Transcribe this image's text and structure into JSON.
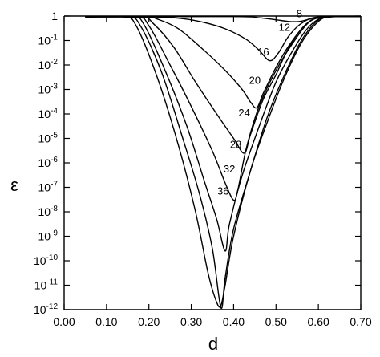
{
  "chart_data": {
    "type": "line",
    "xlabel": "d",
    "ylabel": "ε",
    "y_scale": "log",
    "xlim": [
      0.0,
      0.7
    ],
    "ylim": [
      1e-12,
      1
    ],
    "x_ticks": [
      "0.00",
      "0.10",
      "0.20",
      "0.30",
      "0.40",
      "0.50",
      "0.60",
      "0.70"
    ],
    "y_ticks": [
      {
        "value": 1,
        "base": "1",
        "exp": ""
      },
      {
        "value": 0.1,
        "base": "10",
        "exp": "-1"
      },
      {
        "value": 0.01,
        "base": "10",
        "exp": "-2"
      },
      {
        "value": 0.001,
        "base": "10",
        "exp": "-3"
      },
      {
        "value": 0.0001,
        "base": "10",
        "exp": "-4"
      },
      {
        "value": 1e-05,
        "base": "10",
        "exp": "-5"
      },
      {
        "value": 1e-06,
        "base": "10",
        "exp": "-6"
      },
      {
        "value": 1e-07,
        "base": "10",
        "exp": "-7"
      },
      {
        "value": 1e-08,
        "base": "10",
        "exp": "-8"
      },
      {
        "value": 1e-09,
        "base": "10",
        "exp": "-9"
      },
      {
        "value": 1e-10,
        "base": "10",
        "exp": "-10"
      },
      {
        "value": 1e-11,
        "base": "10",
        "exp": "-11"
      },
      {
        "value": 1e-12,
        "base": "10",
        "exp": "-12"
      }
    ],
    "grid": false,
    "legend": "none",
    "series": [
      {
        "name": "8",
        "label_at": {
          "x": 0.555,
          "y": 0.9
        },
        "points": [
          [
            0.05,
            0.92
          ],
          [
            0.4,
            0.95
          ],
          [
            0.46,
            0.85
          ],
          [
            0.5,
            0.7
          ],
          [
            0.53,
            0.6
          ],
          [
            0.555,
            0.6
          ],
          [
            0.58,
            0.75
          ],
          [
            0.61,
            0.93
          ],
          [
            0.7,
            0.96
          ]
        ]
      },
      {
        "name": "12",
        "label_at": {
          "x": 0.52,
          "y": 0.25
        },
        "points": [
          [
            0.05,
            0.92
          ],
          [
            0.2,
            0.92
          ],
          [
            0.26,
            0.85
          ],
          [
            0.32,
            0.6
          ],
          [
            0.38,
            0.3
          ],
          [
            0.43,
            0.11
          ],
          [
            0.46,
            0.04
          ],
          [
            0.485,
            0.015
          ],
          [
            0.505,
            0.03
          ],
          [
            0.53,
            0.15
          ],
          [
            0.56,
            0.5
          ],
          [
            0.6,
            0.92
          ],
          [
            0.7,
            0.95
          ]
        ]
      },
      {
        "name": "16",
        "label_at": {
          "x": 0.47,
          "y": 0.025
        },
        "points": [
          [
            0.05,
            0.92
          ],
          [
            0.19,
            0.92
          ],
          [
            0.22,
            0.75
          ],
          [
            0.27,
            0.3
          ],
          [
            0.33,
            0.04
          ],
          [
            0.38,
            0.006
          ],
          [
            0.42,
            0.001
          ],
          [
            0.44,
            0.0003
          ],
          [
            0.455,
            0.00018
          ],
          [
            0.47,
            0.0007
          ],
          [
            0.5,
            0.008
          ],
          [
            0.53,
            0.06
          ],
          [
            0.57,
            0.45
          ],
          [
            0.61,
            0.9
          ],
          [
            0.7,
            0.95
          ]
        ]
      },
      {
        "name": "20",
        "label_at": {
          "x": 0.45,
          "y": 0.0017
        },
        "points": [
          [
            0.05,
            0.92
          ],
          [
            0.18,
            0.92
          ],
          [
            0.21,
            0.5
          ],
          [
            0.26,
            0.05
          ],
          [
            0.31,
            0.002
          ],
          [
            0.36,
            0.0001
          ],
          [
            0.4,
            1e-05
          ],
          [
            0.425,
            2.5e-06
          ],
          [
            0.44,
            1.5e-05
          ],
          [
            0.47,
            0.0004
          ],
          [
            0.5,
            0.004
          ],
          [
            0.53,
            0.05
          ],
          [
            0.57,
            0.45
          ],
          [
            0.61,
            0.9
          ],
          [
            0.7,
            0.95
          ]
        ]
      },
      {
        "name": "24",
        "label_at": {
          "x": 0.425,
          "y": 8e-05
        },
        "points": [
          [
            0.05,
            0.92
          ],
          [
            0.17,
            0.92
          ],
          [
            0.2,
            0.4
          ],
          [
            0.25,
            0.01
          ],
          [
            0.3,
            0.0002
          ],
          [
            0.35,
            3e-06
          ],
          [
            0.38,
            1.5e-07
          ],
          [
            0.4,
            3e-08
          ],
          [
            0.41,
            8e-08
          ],
          [
            0.43,
            4e-06
          ],
          [
            0.46,
            0.0002
          ],
          [
            0.5,
            0.006
          ],
          [
            0.54,
            0.08
          ],
          [
            0.58,
            0.6
          ],
          [
            0.62,
            0.92
          ],
          [
            0.7,
            0.95
          ]
        ]
      },
      {
        "name": "28",
        "label_at": {
          "x": 0.405,
          "y": 4e-06
        },
        "points": [
          [
            0.05,
            0.92
          ],
          [
            0.16,
            0.92
          ],
          [
            0.19,
            0.4
          ],
          [
            0.24,
            0.005
          ],
          [
            0.29,
            3e-05
          ],
          [
            0.33,
            2e-07
          ],
          [
            0.36,
            5e-09
          ],
          [
            0.38,
            2.5e-10
          ],
          [
            0.39,
            3e-09
          ],
          [
            0.42,
            3e-07
          ],
          [
            0.46,
            3e-05
          ],
          [
            0.5,
            0.002
          ],
          [
            0.54,
            0.04
          ],
          [
            0.58,
            0.4
          ],
          [
            0.62,
            0.9
          ],
          [
            0.7,
            0.95
          ]
        ]
      },
      {
        "name": "32",
        "label_at": {
          "x": 0.39,
          "y": 4e-07
        },
        "points": [
          [
            0.05,
            0.92
          ],
          [
            0.15,
            0.92
          ],
          [
            0.18,
            0.4
          ],
          [
            0.23,
            0.005
          ],
          [
            0.28,
            1e-05
          ],
          [
            0.32,
            5e-08
          ],
          [
            0.35,
            3e-10
          ],
          [
            0.37,
            1.2e-12
          ],
          [
            0.38,
            2e-11
          ],
          [
            0.4,
            2e-09
          ],
          [
            0.44,
            5e-07
          ],
          [
            0.48,
            8e-05
          ],
          [
            0.52,
            0.004
          ],
          [
            0.56,
            0.1
          ],
          [
            0.6,
            0.7
          ],
          [
            0.63,
            0.93
          ],
          [
            0.7,
            0.95
          ]
        ]
      },
      {
        "name": "36",
        "label_at": {
          "x": 0.375,
          "y": 5e-08
        },
        "points": [
          [
            0.05,
            0.92
          ],
          [
            0.14,
            0.92
          ],
          [
            0.17,
            0.4
          ],
          [
            0.22,
            0.003
          ],
          [
            0.27,
            5e-06
          ],
          [
            0.31,
            1e-08
          ],
          [
            0.34,
            3e-11
          ],
          [
            0.36,
            2e-12
          ],
          [
            0.37,
            1.5e-12
          ],
          [
            0.38,
            1e-11
          ],
          [
            0.4,
            1e-09
          ],
          [
            0.44,
            5e-07
          ],
          [
            0.48,
            5e-05
          ],
          [
            0.52,
            0.003
          ],
          [
            0.56,
            0.08
          ],
          [
            0.6,
            0.6
          ],
          [
            0.63,
            0.92
          ],
          [
            0.7,
            0.95
          ]
        ]
      }
    ]
  }
}
